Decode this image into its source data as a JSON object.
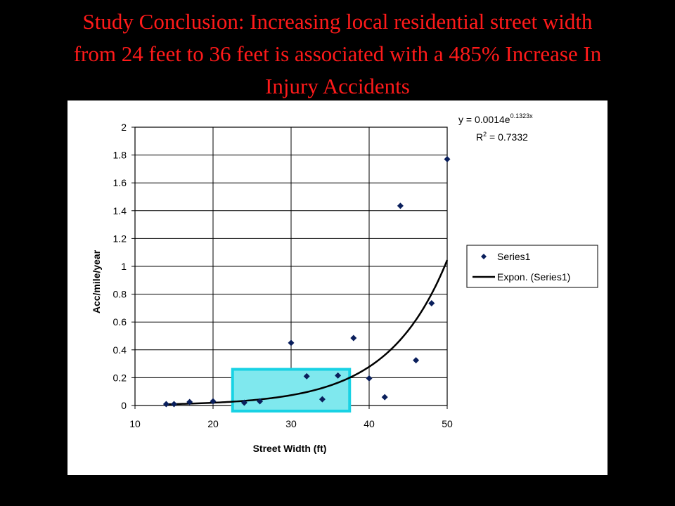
{
  "slide": {
    "title_lines": [
      "Study Conclusion: Increasing local residential street width",
      "from 24 feet to 36 feet is associated with a 485% Increase In",
      "Injury Accidents"
    ]
  },
  "colors": {
    "title": "#ff1a1a",
    "marker": "#0a1f5c",
    "trendline": "#000000",
    "highlight_fill": "#7fe8ee",
    "highlight_stroke": "#18d2e4"
  },
  "chart_data": {
    "type": "scatter",
    "title": "",
    "xlabel": "Street Width (ft)",
    "ylabel": "Acc/mile/year",
    "xlim": [
      10,
      50
    ],
    "ylim": [
      0,
      2
    ],
    "xticks": [
      10,
      20,
      30,
      40,
      50
    ],
    "yticks": [
      0,
      0.2,
      0.4,
      0.6,
      0.8,
      1,
      1.2,
      1.4,
      1.6,
      1.8,
      2
    ],
    "grid": true,
    "legend_position": "right",
    "series": [
      {
        "name": "Series1",
        "marker": "diamond",
        "points": [
          {
            "x": 14,
            "y": 0.01
          },
          {
            "x": 15,
            "y": 0.01
          },
          {
            "x": 17,
            "y": 0.025
          },
          {
            "x": 20,
            "y": 0.03
          },
          {
            "x": 24,
            "y": 0.02
          },
          {
            "x": 26,
            "y": 0.03
          },
          {
            "x": 30,
            "y": 0.45
          },
          {
            "x": 32,
            "y": 0.21
          },
          {
            "x": 34,
            "y": 0.045
          },
          {
            "x": 36,
            "y": 0.215
          },
          {
            "x": 38,
            "y": 0.485
          },
          {
            "x": 40,
            "y": 0.195
          },
          {
            "x": 42,
            "y": 0.06
          },
          {
            "x": 44,
            "y": 1.435
          },
          {
            "x": 46,
            "y": 0.325
          },
          {
            "x": 48,
            "y": 0.735
          },
          {
            "x": 50,
            "y": 1.77
          }
        ]
      }
    ],
    "trendline": {
      "name": "Expon. (Series1)",
      "type": "exponential",
      "coefficient": 0.0014,
      "rate": 0.1323,
      "x_range": [
        14,
        50
      ]
    },
    "equation": {
      "prefix": "y = 0.0014e",
      "exponent": "0.1323x",
      "r2_prefix": "R",
      "r2_sup": "2",
      "r2_value": " = 0.7332"
    },
    "highlight_region": {
      "x_range": [
        22.5,
        37.5
      ],
      "y_range": [
        -0.04,
        0.26
      ]
    }
  }
}
